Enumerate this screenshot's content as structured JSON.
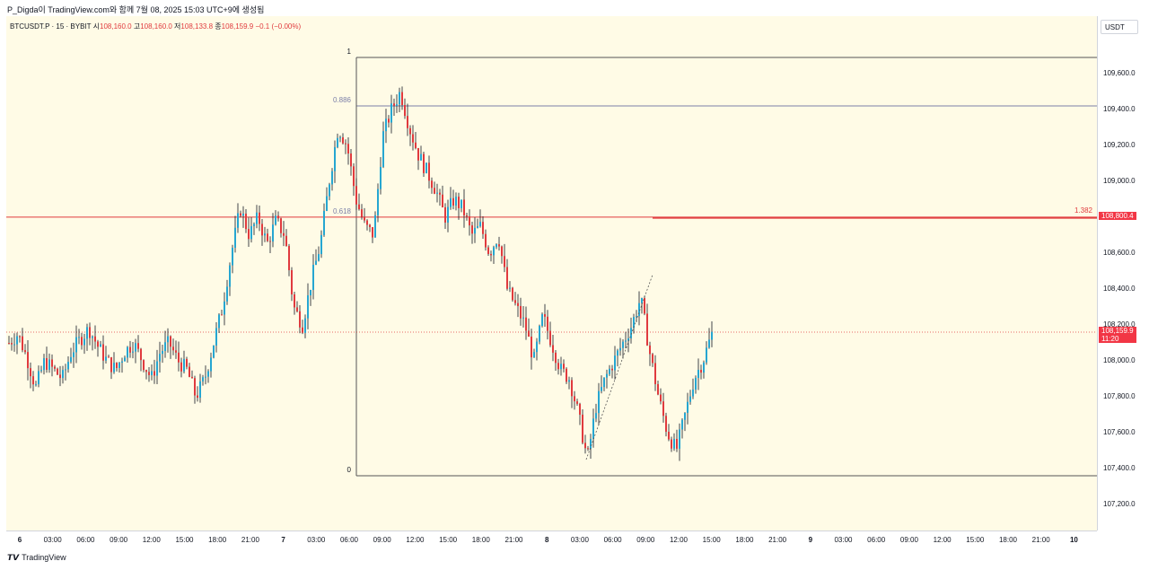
{
  "header": {
    "created_line": "P_Digda이 TradingView.com와 함께 7월 08, 2025 15:03 UTC+9에 생성됨"
  },
  "legend": {
    "symbol": "BTCUSDT.P · 15 · BYBIT",
    "open_label": "시",
    "open": "108,160.0",
    "high_label": "고",
    "high": "108,160.0",
    "low_label": "저",
    "low": "108,133.8",
    "close_label": "종",
    "close": "108,159.9",
    "change": "−0.1 (−0.00%)"
  },
  "currency": "USDT",
  "colors": {
    "up": "#26a6d1",
    "down": "#e03a3e",
    "plot_bg": "#fffbe6",
    "level_line": "#e03a3e"
  },
  "chart_data": {
    "type": "candlestick",
    "y_ticks": [
      "109,600.0",
      "109,400.0",
      "109,200.0",
      "109,000.0",
      "108,800.0",
      "108,600.0",
      "108,400.0",
      "108,200.0",
      "108,000.0",
      "107,800.0",
      "107,600.0",
      "107,400.0",
      "107,200.0"
    ],
    "x_ticks": [
      "6",
      "03:00",
      "06:00",
      "09:00",
      "12:00",
      "15:00",
      "18:00",
      "21:00",
      "7",
      "03:00",
      "06:00",
      "09:00",
      "12:00",
      "15:00",
      "18:00",
      "21:00",
      "8",
      "03:00",
      "06:00",
      "09:00",
      "12:00",
      "15:00",
      "18:00",
      "21:00",
      "9",
      "03:00",
      "06:00",
      "09:00",
      "12:00",
      "15:00",
      "18:00",
      "21:00",
      "10"
    ],
    "ylim": [
      107180,
      109820
    ],
    "fib_retracement": {
      "levels": [
        {
          "label": "1",
          "price": 109690
        },
        {
          "label": "0.886",
          "price": 109420
        },
        {
          "label": "0.618",
          "price": 108800
        },
        {
          "label": "0",
          "price": 107360
        }
      ]
    },
    "horizontal_level": {
      "label": "1.382",
      "price": 108800.4,
      "price_text": "108,800.4"
    },
    "last_price": {
      "price": 108159.9,
      "price_text": "108,159.9",
      "countdown": "11:20"
    },
    "trend_line": {
      "from_price": 107450,
      "to_price": 108480
    },
    "anchors": [
      108100,
      108150,
      108020,
      107850,
      108000,
      107950,
      107900,
      108050,
      108120,
      108180,
      108080,
      108000,
      107950,
      108050,
      108100,
      108000,
      107900,
      108050,
      108100,
      108000,
      107950,
      107800,
      107900,
      108100,
      108300,
      108600,
      108850,
      108700,
      108800,
      108650,
      108780,
      108700,
      108300,
      108200,
      108450,
      108650,
      109000,
      109300,
      109200,
      108900,
      108750,
      108700,
      109250,
      109400,
      109500,
      109300,
      109150,
      109050,
      108950,
      108800,
      108900,
      108850,
      108700,
      108750,
      108600,
      108700,
      108400,
      108300,
      108200,
      108000,
      108250,
      108100,
      107950,
      107900,
      107700,
      107450,
      107750,
      107900,
      108000,
      108100,
      108200,
      108350,
      108050,
      107800,
      107600,
      107500,
      107700,
      107900,
      108000,
      108150
    ]
  }
}
